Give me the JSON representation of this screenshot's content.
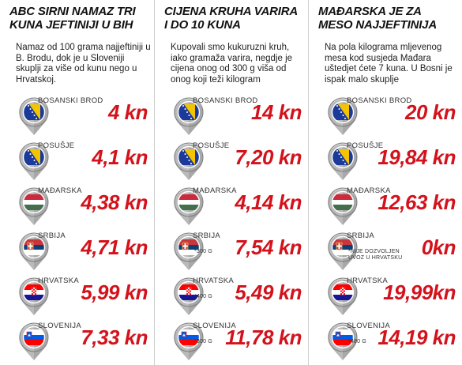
{
  "columns": [
    {
      "title_lines": [
        "ABC sirni namaz tri",
        "kuna jeftiniji u BiH"
      ],
      "intro": "Namaz od 100 grama najjeftiniji u B. Brodu, dok je u Sloveniji skuplji za više od kunu nego u Hrvatskoj.",
      "rows": [
        {
          "country": "BOSANSKI BROD",
          "price": "4 kn",
          "note": "",
          "flag": "bih"
        },
        {
          "country": "POSUŠJE",
          "price": "4,1 kn",
          "note": "",
          "flag": "bih"
        },
        {
          "country": "MAĐARSKA",
          "price": "4,38 kn",
          "note": "",
          "flag": "hungary"
        },
        {
          "country": "SRBIJA",
          "price": "4,71 kn",
          "note": "",
          "flag": "serbia"
        },
        {
          "country": "HRVATSKA",
          "price": "5,99 kn",
          "note": "",
          "flag": "croatia"
        },
        {
          "country": "SLOVENIJA",
          "price": "7,33 kn",
          "note": "",
          "flag": "slovenia"
        }
      ]
    },
    {
      "title_lines": [
        "Cijena kruha varira",
        "i do 10 kuna"
      ],
      "intro": "Kupovali smo kukuruzni kruh, iako gramaža varira, negdje je cijena onog od 300 g viša od onog koji teži kilogram",
      "rows": [
        {
          "country": "BOSANSKI BROD",
          "price": "14 kn",
          "note": "",
          "flag": "bih"
        },
        {
          "country": "POSUŠJE",
          "price": "7,20 kn",
          "note": "",
          "flag": "bih"
        },
        {
          "country": "MAĐARSKA",
          "price": "4,14 kn",
          "note": "",
          "flag": "hungary"
        },
        {
          "country": "SRBIJA",
          "price": "7,54 kn",
          "note": "*300 G",
          "flag": "serbia"
        },
        {
          "country": "HRVATSKA",
          "price": "5,49 kn",
          "note": "*400 G",
          "flag": "croatia"
        },
        {
          "country": "SLOVENIJA",
          "price": "11,78 kn",
          "note": "*300 G",
          "flag": "slovenia"
        }
      ]
    },
    {
      "title_lines": [
        "Mađarska je za",
        "meso najjeftinija"
      ],
      "intro": "Na pola kilograma mljevenog mesa kod susjeda Mađara uštedjet ćete 7 kuna. U Bosni je ispak malo skuplje",
      "rows": [
        {
          "country": "BOSANSKI BROD",
          "price": "20 kn",
          "note": "",
          "flag": "bih"
        },
        {
          "country": "POSUŠJE",
          "price": "19,84 kn",
          "note": "",
          "flag": "bih"
        },
        {
          "country": "MAĐARSKA",
          "price": "12,63 kn",
          "note": "",
          "flag": "hungary"
        },
        {
          "country": "SRBIJA",
          "price": "0kn",
          "note": "*NIJE DOZVOLJEN UVOZ U HRVATSKU",
          "flag": "serbia"
        },
        {
          "country": "HRVATSKA",
          "price": "19,99kn",
          "note": "",
          "flag": "croatia"
        },
        {
          "country": "SLOVENIJA",
          "price": "14,19 kn",
          "note": "*480 G",
          "flag": "slovenia"
        }
      ]
    }
  ],
  "colors": {
    "price": "#d3121b",
    "pin": "#8f8f8f"
  }
}
